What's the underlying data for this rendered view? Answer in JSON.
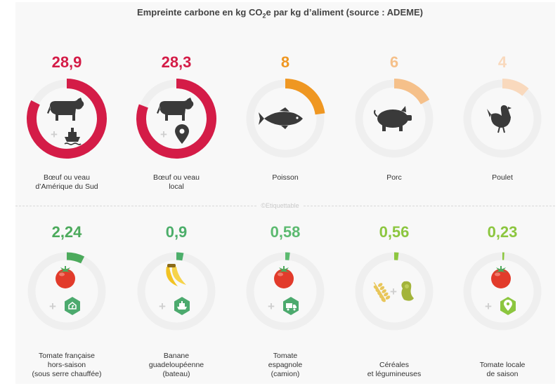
{
  "title": {
    "pre": "Empreinte carbone en kg CO",
    "sub": "2",
    "post": "e par kg d’aliment (source : ADEME)"
  },
  "credit": "©Etiquettable",
  "colors": {
    "track": "#efefef",
    "icon": "#3a3a3a",
    "tomato": "#e23b2b",
    "leaf": "#4caa5c",
    "banana": "#f2c323",
    "grain": "#e8c65a",
    "legume": "#a3b43a",
    "badge": "#4caa6e",
    "badge_lime": "#8cc63f"
  },
  "chart_data": {
    "type": "radial-bar",
    "title": "Empreinte carbone en kg CO2e par kg d’aliment (source : ADEME)",
    "unit": "kg CO2e / kg",
    "rows": [
      {
        "name": "viande",
        "max": 35,
        "items": [
          {
            "label_lines": [
              "Bœuf ou veau",
              "d’Amérique du Sud"
            ],
            "value": 28.9,
            "display": "28,9",
            "color": "#d41c47",
            "icon": "cow-icon",
            "badge": "ship-icon"
          },
          {
            "label_lines": [
              "Bœuf ou veau",
              "local"
            ],
            "value": 28.3,
            "display": "28,3",
            "color": "#d41c47",
            "icon": "cow-icon",
            "badge": "location-pin-icon"
          },
          {
            "label_lines": [
              "Poisson"
            ],
            "value": 8,
            "display": "8",
            "color": "#ef9722",
            "icon": "fish-icon",
            "badge": ""
          },
          {
            "label_lines": [
              "Porc"
            ],
            "value": 6,
            "display": "6",
            "color": "#f5c08a",
            "icon": "pig-icon",
            "badge": ""
          },
          {
            "label_lines": [
              "Poulet"
            ],
            "value": 4,
            "display": "4",
            "color": "#f9d9bd",
            "icon": "chicken-icon",
            "badge": ""
          }
        ]
      },
      {
        "name": "vegetal",
        "max": 30,
        "items": [
          {
            "label_lines": [
              "Tomate française",
              "hors-saison",
              "(sous serre chauffée)"
            ],
            "value": 2.24,
            "display": "2,24",
            "color": "#4caa5c",
            "icon": "tomato-icon",
            "badge": "greenhouse-icon"
          },
          {
            "label_lines": [
              "Banane",
              "guadeloupéenne",
              "(bateau)"
            ],
            "value": 0.9,
            "display": "0,9",
            "color": "#4cae6a",
            "icon": "banana-icon",
            "badge": "boat-icon"
          },
          {
            "label_lines": [
              "Tomate",
              "espagnole",
              "(camion)"
            ],
            "value": 0.58,
            "display": "0,58",
            "color": "#5cba70",
            "icon": "tomato-icon",
            "badge": "truck-icon"
          },
          {
            "label_lines": [
              "Céréales",
              "et légumineuses"
            ],
            "value": 0.56,
            "display": "0,56",
            "color": "#8cc63f",
            "icon": "cereals-icon",
            "badge": "legumes-icon"
          },
          {
            "label_lines": [
              "Tomate locale",
              "de saison"
            ],
            "value": 0.23,
            "display": "0,23",
            "color": "#8cc63f",
            "icon": "tomato-icon",
            "badge": "location-pin-icon"
          }
        ]
      }
    ]
  }
}
